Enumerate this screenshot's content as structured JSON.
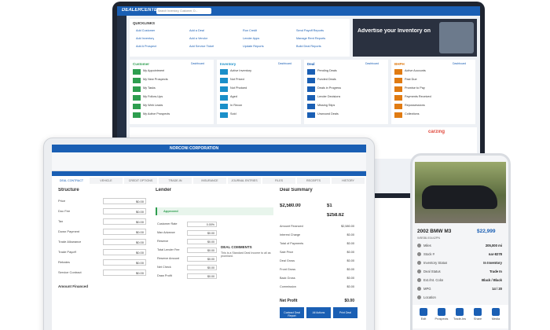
{
  "dashboard": {
    "brand": "DEALERCENTER",
    "search": "Search Inventory, Customer, D...",
    "quicklinks_title": "QUICKLINKS",
    "quicklinks": [
      "Add Customer",
      "Add a Deal",
      "Run Credit",
      "Send Payoff Reports",
      "Add Inventory",
      "Add a Vendor",
      "Lender Apps",
      "Manage Rent Reports",
      "Add A Prospect",
      "Add Service Ticket",
      "Update Reports",
      "Build Deal Reports"
    ],
    "ad": "Advertise your Inventory on",
    "panels": [
      {
        "title": "Customer",
        "link": "Dashboard",
        "rows": [
          "My Appointment",
          "My New Prospects",
          "My Tasks",
          "My Follow-Ups",
          "My Web Leads",
          "My Active Prospects"
        ]
      },
      {
        "title": "Inventory",
        "link": "Dashboard",
        "rows": [
          "Active Inventory",
          "Not Priced",
          "Not Photoed",
          "Aged",
          "In Recon",
          "Sold"
        ]
      },
      {
        "title": "Deal",
        "link": "Dashboard",
        "rows": [
          "Pending Deals",
          "Funded Deals",
          "Deals in Progress",
          "Lender Decisions",
          "Missing Stips",
          "Unwound Deals"
        ]
      },
      {
        "title": "BHPH",
        "link": "Dashboard",
        "rows": [
          "Active Accounts",
          "Past Due",
          "Promise to Pay",
          "Payments Received",
          "Repossessions",
          "Collections"
        ]
      }
    ],
    "carzing": "carzing"
  },
  "deal": {
    "title": "NORCONI CORPORATION",
    "tabs": [
      "DEAL CONTRACT",
      "VEHICLE",
      "CREDIT OPTIONS",
      "TRADE-IN",
      "INSURANCE",
      "JOURNAL ENTRIES",
      "FILES",
      "RECEIPTS",
      "HISTORY"
    ],
    "structure_title": "Structure",
    "structure_fields": [
      {
        "label": "Price",
        "value": "$0.00"
      },
      {
        "label": "Doc Fee",
        "value": "$0.00"
      },
      {
        "label": "Tax",
        "value": "$0.00"
      },
      {
        "label": "Down Payment",
        "value": "$0.00"
      },
      {
        "label": "Trade Allowance",
        "value": "$0.00"
      },
      {
        "label": "Trade Payoff",
        "value": "$0.00"
      },
      {
        "label": "Rebates",
        "value": "$0.00"
      },
      {
        "label": "Service Contract",
        "value": "$0.00"
      }
    ],
    "amount_financed": "Amount Financed",
    "lender_title": "Lender",
    "lender_fields": [
      {
        "label": "Customer Rate",
        "value": "0.00%"
      },
      {
        "label": "Max Advance",
        "value": "$0.00"
      },
      {
        "label": "Reserve",
        "value": "$0.00"
      },
      {
        "label": "Total Lender Fee",
        "value": "$0.00"
      },
      {
        "label": "Reserve Amount",
        "value": "$0.00"
      },
      {
        "label": "Net Check",
        "value": "$0.00"
      },
      {
        "label": "Draw Profit",
        "value": "$0.00"
      }
    ],
    "approved": "Approved",
    "comments": "DEAL COMMENTS",
    "comment_text": "This is a Standard Deal Income to all as promised.",
    "summary_title": "Deal Summary",
    "summary_values": [
      "$2,580.00",
      "$1",
      "$258.62"
    ],
    "summary_rows": [
      {
        "label": "Amount Financed",
        "value": "$2,580.00"
      },
      {
        "label": "Interest Charge",
        "value": "$0.00"
      },
      {
        "label": "Total of Payments",
        "value": "$0.00"
      },
      {
        "label": "Sale Price",
        "value": "$0.00"
      },
      {
        "label": "Deal Gross",
        "value": "$0.00"
      },
      {
        "label": "Front Gross",
        "value": "$0.00"
      },
      {
        "label": "Back Gross",
        "value": "$0.00"
      },
      {
        "label": "Commission",
        "value": "$0.00"
      }
    ],
    "net_profit": "Net Profit",
    "net_value": "$0.00",
    "buttons": [
      "Contract Deal Report",
      "All Actions",
      "Print Deal"
    ]
  },
  "phone": {
    "title": "2002 BMW M3",
    "price": "$22,999",
    "vin": "WBSBL93442PN",
    "fields": [
      {
        "label": "Miles",
        "value": "205,000 mi"
      },
      {
        "label": "Stock #",
        "value": "nar-8278"
      },
      {
        "label": "Inventory Status",
        "value": "In Inventory"
      },
      {
        "label": "Deal Status",
        "value": "Trade In"
      },
      {
        "label": "Ext./Int. Color",
        "value": "Black / Black"
      },
      {
        "label": "MPG",
        "value": "14 / 20"
      },
      {
        "label": "Location",
        "value": ""
      }
    ],
    "nav": [
      "Edit",
      "Prospects",
      "Trade-Ins",
      "Share",
      "Media"
    ]
  }
}
